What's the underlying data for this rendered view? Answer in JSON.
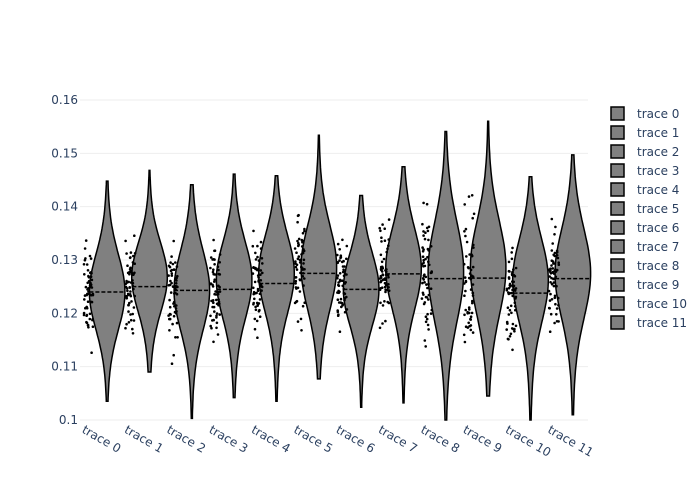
{
  "chart_data": {
    "type": "violin",
    "title": "",
    "xlabel": "",
    "ylabel": "",
    "ylim": [
      0.1,
      0.16
    ],
    "yticks": [
      "0.1",
      "0.11",
      "0.12",
      "0.13",
      "0.14",
      "0.15",
      "0.16"
    ],
    "grid": true,
    "legend_position": "right",
    "colors": {
      "violin_fill": "#808080",
      "violin_line": "#000000",
      "points": "#000000",
      "grid": "#eeeeee",
      "text": "#2a3f5f"
    },
    "series": [
      {
        "name": "trace 0",
        "mean": 0.124,
        "min": 0.1035,
        "max": 0.1448,
        "peak": 0.124
      },
      {
        "name": "trace 1",
        "mean": 0.125,
        "min": 0.109,
        "max": 0.1468,
        "peak": 0.127
      },
      {
        "name": "trace 2",
        "mean": 0.1243,
        "min": 0.1003,
        "max": 0.1441,
        "peak": 0.1243
      },
      {
        "name": "trace 3",
        "mean": 0.1245,
        "min": 0.1042,
        "max": 0.1461,
        "peak": 0.1265
      },
      {
        "name": "trace 4",
        "mean": 0.1256,
        "min": 0.1035,
        "max": 0.1458,
        "peak": 0.1277
      },
      {
        "name": "trace 5",
        "mean": 0.1275,
        "min": 0.1077,
        "max": 0.1534,
        "peak": 0.1288
      },
      {
        "name": "trace 6",
        "mean": 0.1245,
        "min": 0.1024,
        "max": 0.1421,
        "peak": 0.1245
      },
      {
        "name": "trace 7",
        "mean": 0.1274,
        "min": 0.1032,
        "max": 0.1475,
        "peak": 0.1285
      },
      {
        "name": "trace 8",
        "mean": 0.1265,
        "min": 0.1,
        "max": 0.1541,
        "peak": 0.128
      },
      {
        "name": "trace 9",
        "mean": 0.1266,
        "min": 0.1045,
        "max": 0.156,
        "peak": 0.1288
      },
      {
        "name": "trace 10",
        "mean": 0.1238,
        "min": 0.1,
        "max": 0.1456,
        "peak": 0.1265
      },
      {
        "name": "trace 11",
        "mean": 0.1265,
        "min": 0.101,
        "max": 0.1497,
        "peak": 0.1276
      }
    ]
  }
}
